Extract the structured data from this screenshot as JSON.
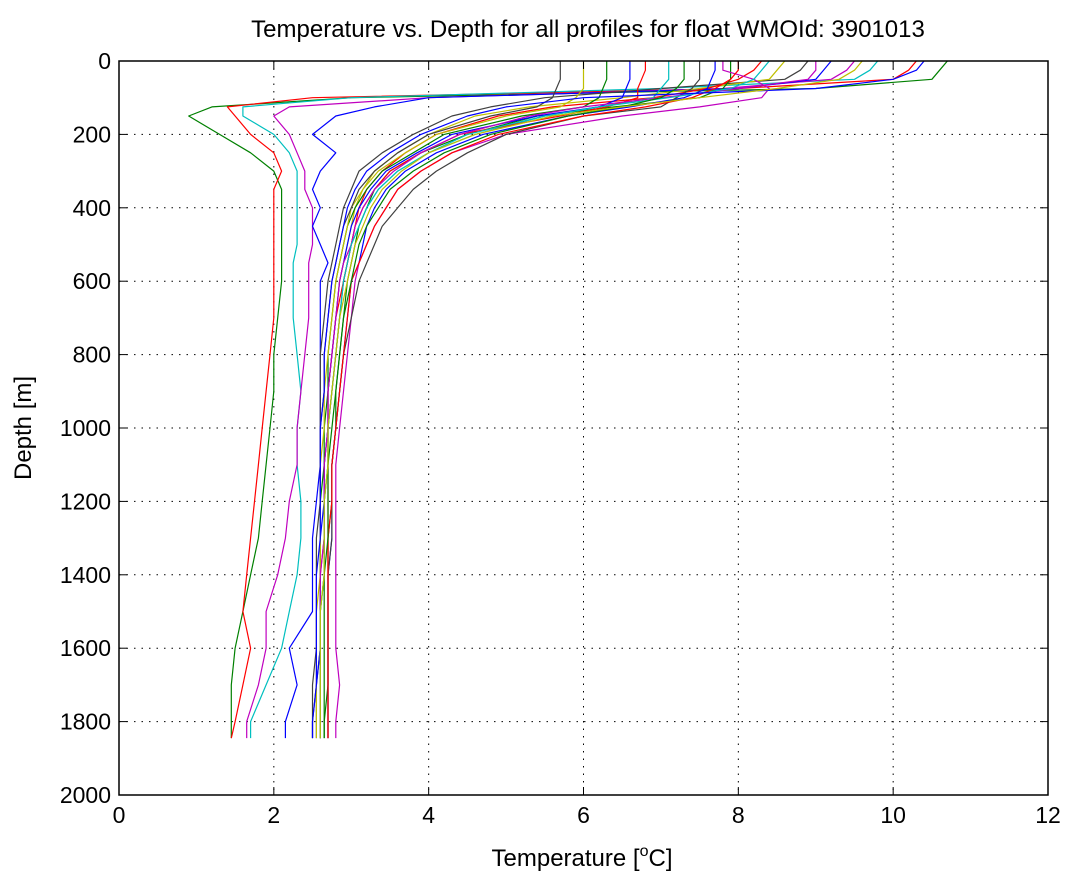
{
  "chart_data": {
    "type": "line",
    "title": "Temperature vs. Depth for all profiles for float WMOId: 3901013",
    "xlabel_prefix": "Temperature [",
    "xlabel_sup": "o",
    "xlabel_suffix": "C]",
    "ylabel": "Depth [m]",
    "xlim": [
      0,
      12
    ],
    "ylim": [
      0,
      2000
    ],
    "y_reversed": true,
    "x_ticks": [
      0,
      2,
      4,
      6,
      8,
      10,
      12
    ],
    "y_ticks": [
      0,
      200,
      400,
      600,
      800,
      1000,
      1200,
      1400,
      1600,
      1800,
      2000
    ],
    "grid": true,
    "grid_style": "dotted",
    "depths": [
      0,
      25,
      50,
      75,
      100,
      125,
      150,
      200,
      250,
      300,
      350,
      400,
      450,
      500,
      550,
      600,
      700,
      800,
      900,
      1000,
      1100,
      1200,
      1300,
      1400,
      1500,
      1600,
      1700,
      1800,
      1845
    ],
    "series": [
      {
        "color": "#008000",
        "values": [
          10.7,
          10.6,
          10.5,
          9.0,
          3.0,
          1.2,
          0.9,
          1.3,
          1.7,
          2.0,
          2.1,
          2.1,
          2.1,
          2.1,
          2.1,
          2.1,
          2.05,
          2.0,
          2.0,
          1.95,
          1.9,
          1.85,
          1.8,
          1.7,
          1.6,
          1.5,
          1.45,
          1.45,
          1.45
        ]
      },
      {
        "color": "#ff0000",
        "values": [
          10.3,
          10.2,
          10.0,
          8.0,
          2.5,
          1.4,
          1.5,
          1.7,
          2.0,
          2.1,
          2.0,
          2.0,
          2.0,
          2.0,
          2.0,
          2.0,
          2.0,
          1.95,
          1.9,
          1.85,
          1.8,
          1.75,
          1.7,
          1.65,
          1.6,
          1.7,
          1.6,
          1.5,
          1.45
        ]
      },
      {
        "color": "#00bfbf",
        "values": [
          9.8,
          9.7,
          9.5,
          7.0,
          3.0,
          1.6,
          1.6,
          2.0,
          2.2,
          2.3,
          2.3,
          2.3,
          2.3,
          2.3,
          2.25,
          2.25,
          2.25,
          2.3,
          2.35,
          2.3,
          2.3,
          2.35,
          2.35,
          2.3,
          2.2,
          2.1,
          1.9,
          1.7,
          1.7
        ]
      },
      {
        "color": "#bf00bf",
        "values": [
          9.5,
          9.4,
          9.2,
          7.8,
          4.0,
          2.2,
          2.0,
          2.2,
          2.3,
          2.4,
          2.4,
          2.5,
          2.5,
          2.5,
          2.45,
          2.45,
          2.45,
          2.4,
          2.35,
          2.3,
          2.3,
          2.2,
          2.15,
          2.05,
          1.9,
          1.9,
          1.8,
          1.65,
          1.65
        ]
      },
      {
        "color": "#0000ff",
        "values": [
          9.2,
          9.1,
          9.0,
          8.0,
          4.0,
          3.3,
          2.8,
          2.5,
          2.8,
          2.6,
          2.5,
          2.6,
          2.5,
          2.6,
          2.7,
          2.6,
          2.6,
          2.6,
          2.6,
          2.6,
          2.6,
          2.55,
          2.5,
          2.5,
          2.5,
          2.2,
          2.3,
          2.15,
          2.15
        ]
      },
      {
        "color": "#404040",
        "values": [
          8.9,
          8.8,
          8.6,
          7.0,
          5.5,
          4.8,
          4.3,
          3.8,
          3.4,
          3.1,
          3.0,
          2.9,
          2.85,
          2.8,
          2.75,
          2.7,
          2.65,
          2.6,
          2.6,
          2.6,
          2.6,
          2.6,
          2.6,
          2.6,
          2.6,
          2.6,
          2.55,
          2.5,
          2.5
        ]
      },
      {
        "color": "#bfbf00",
        "values": [
          8.6,
          8.5,
          8.4,
          7.5,
          6.5,
          5.3,
          4.6,
          4.0,
          3.6,
          3.3,
          3.15,
          3.05,
          3.0,
          2.95,
          2.9,
          2.85,
          2.8,
          2.75,
          2.7,
          2.7,
          2.7,
          2.65,
          2.65,
          2.65,
          2.6,
          2.6,
          2.6,
          2.6,
          2.6
        ]
      },
      {
        "color": "#ff0000",
        "values": [
          8.3,
          8.2,
          8.0,
          7.6,
          6.9,
          5.6,
          4.9,
          4.1,
          3.7,
          3.4,
          3.2,
          3.1,
          3.05,
          3.0,
          2.95,
          2.9,
          2.85,
          2.8,
          2.75,
          2.7,
          2.7,
          2.7,
          2.7,
          2.7,
          2.7,
          2.7,
          2.7,
          2.7,
          2.7
        ]
      },
      {
        "color": "#008000",
        "values": [
          7.9,
          7.9,
          7.9,
          7.8,
          7.5,
          6.4,
          5.4,
          4.5,
          3.9,
          3.5,
          3.3,
          3.2,
          3.1,
          3.05,
          3.0,
          2.95,
          2.9,
          2.85,
          2.8,
          2.8,
          2.75,
          2.75,
          2.7,
          2.7,
          2.7,
          2.7,
          2.7,
          2.65,
          2.65
        ]
      },
      {
        "color": "#0000ff",
        "values": [
          7.7,
          7.7,
          7.65,
          7.6,
          7.3,
          6.6,
          5.8,
          4.7,
          4.1,
          3.7,
          3.45,
          3.3,
          3.2,
          3.15,
          3.1,
          3.0,
          2.95,
          2.9,
          2.85,
          2.8,
          2.75,
          2.75,
          2.75,
          2.7,
          2.7,
          2.7,
          2.7,
          2.7,
          2.7
        ]
      },
      {
        "color": "#bf00bf",
        "values": [
          7.8,
          7.8,
          8.2,
          8.4,
          8.3,
          7.5,
          6.5,
          5.0,
          4.3,
          3.9,
          3.6,
          3.45,
          3.3,
          3.2,
          3.1,
          3.05,
          3.0,
          2.95,
          2.9,
          2.85,
          2.8,
          2.8,
          2.8,
          2.8,
          2.8,
          2.8,
          2.85,
          2.8,
          2.8
        ]
      },
      {
        "color": "#404040",
        "values": [
          7.5,
          7.5,
          7.5,
          7.4,
          7.2,
          7.0,
          6.0,
          5.0,
          4.5,
          4.1,
          3.8,
          3.6,
          3.4,
          3.3,
          3.2,
          3.1,
          3.0,
          2.9,
          2.85,
          2.8,
          2.75,
          2.75,
          2.75,
          2.7,
          2.7,
          2.7,
          2.7,
          2.7,
          2.7
        ]
      },
      {
        "color": "#00bfbf",
        "values": [
          7.1,
          7.1,
          7.1,
          7.0,
          6.9,
          6.2,
          5.5,
          4.6,
          4.0,
          3.6,
          3.35,
          3.2,
          3.1,
          3.0,
          2.95,
          2.9,
          2.85,
          2.8,
          2.75,
          2.7,
          2.7,
          2.65,
          2.65,
          2.65,
          2.6,
          2.6,
          2.6,
          2.6,
          2.6
        ]
      },
      {
        "color": "#ff0000",
        "values": [
          6.8,
          6.8,
          6.75,
          6.7,
          6.7,
          6.3,
          5.7,
          4.4,
          3.9,
          3.5,
          3.3,
          3.15,
          3.05,
          3.0,
          2.95,
          2.9,
          2.8,
          2.75,
          2.7,
          2.7,
          2.65,
          2.65,
          2.65,
          2.6,
          2.6,
          2.6,
          2.6,
          2.6,
          2.6
        ]
      },
      {
        "color": "#0000ff",
        "values": [
          6.6,
          6.6,
          6.6,
          6.55,
          6.5,
          6.2,
          5.4,
          4.3,
          3.85,
          3.45,
          3.25,
          3.1,
          3.0,
          2.95,
          2.9,
          2.85,
          2.8,
          2.75,
          2.7,
          2.7,
          2.65,
          2.65,
          2.6,
          2.6,
          2.6,
          2.6,
          2.55,
          2.55,
          2.55
        ]
      },
      {
        "color": "#008000",
        "values": [
          6.3,
          6.3,
          6.3,
          6.25,
          6.2,
          6.0,
          5.2,
          4.2,
          3.8,
          3.4,
          3.2,
          3.05,
          2.95,
          2.9,
          2.85,
          2.8,
          2.75,
          2.7,
          2.7,
          2.65,
          2.65,
          2.6,
          2.6,
          2.6,
          2.6,
          2.6,
          2.6,
          2.6,
          2.6
        ]
      },
      {
        "color": "#bfbf00",
        "values": [
          6.0,
          6.0,
          6.0,
          6.0,
          5.9,
          5.7,
          5.0,
          4.1,
          3.7,
          3.35,
          3.15,
          3.0,
          2.95,
          2.9,
          2.85,
          2.8,
          2.75,
          2.7,
          2.65,
          2.65,
          2.6,
          2.6,
          2.6,
          2.6,
          2.55,
          2.55,
          2.55,
          2.55,
          2.55
        ]
      },
      {
        "color": "#404040",
        "values": [
          5.7,
          5.7,
          5.7,
          5.65,
          5.6,
          5.4,
          4.8,
          4.0,
          3.6,
          3.3,
          3.1,
          3.0,
          2.9,
          2.85,
          2.8,
          2.75,
          2.7,
          2.65,
          2.65,
          2.6,
          2.6,
          2.6,
          2.55,
          2.55,
          2.55,
          2.55,
          2.5,
          2.5,
          2.5
        ]
      },
      {
        "color": "#bf00bf",
        "values": [
          9.0,
          9.0,
          8.9,
          8.0,
          7.0,
          6.0,
          5.3,
          4.4,
          3.9,
          3.55,
          3.3,
          3.15,
          3.05,
          3.0,
          2.9,
          2.85,
          2.8,
          2.75,
          2.7,
          2.7,
          2.65,
          2.65,
          2.65,
          2.6,
          2.6,
          2.6,
          2.6,
          2.6,
          2.6
        ]
      },
      {
        "color": "#00bfbf",
        "values": [
          8.4,
          8.3,
          8.2,
          7.9,
          7.1,
          6.2,
          5.5,
          4.5,
          4.0,
          3.6,
          3.35,
          3.2,
          3.1,
          3.0,
          2.95,
          2.9,
          2.85,
          2.8,
          2.75,
          2.7,
          2.7,
          2.65,
          2.65,
          2.65,
          2.6,
          2.6,
          2.6,
          2.6,
          2.6
        ]
      },
      {
        "color": "#ff0000",
        "values": [
          8.0,
          8.0,
          7.9,
          7.7,
          7.4,
          6.8,
          6.0,
          4.9,
          4.3,
          3.9,
          3.6,
          3.45,
          3.3,
          3.2,
          3.1,
          3.0,
          2.95,
          2.9,
          2.85,
          2.8,
          2.75,
          2.75,
          2.7,
          2.7,
          2.7,
          2.7,
          2.7,
          2.7,
          2.7
        ]
      },
      {
        "color": "#008000",
        "values": [
          7.3,
          7.3,
          7.3,
          7.2,
          7.0,
          6.5,
          5.8,
          4.8,
          4.2,
          3.8,
          3.5,
          3.35,
          3.2,
          3.1,
          3.05,
          3.0,
          2.9,
          2.85,
          2.8,
          2.75,
          2.7,
          2.7,
          2.7,
          2.65,
          2.65,
          2.65,
          2.65,
          2.65,
          2.65
        ]
      },
      {
        "color": "#0000ff",
        "values": [
          10.4,
          10.3,
          10.0,
          9.0,
          6.0,
          5.0,
          4.5,
          3.9,
          3.5,
          3.2,
          3.05,
          2.95,
          2.9,
          2.85,
          2.8,
          2.75,
          2.7,
          2.65,
          2.65,
          2.6,
          2.6,
          2.6,
          2.6,
          2.55,
          2.55,
          2.55,
          2.55,
          2.5,
          2.5
        ]
      },
      {
        "color": "#bfbf00",
        "values": [
          9.6,
          9.5,
          9.3,
          8.5,
          7.5,
          6.5,
          5.6,
          4.6,
          4.0,
          3.65,
          3.4,
          3.25,
          3.15,
          3.05,
          3.0,
          2.95,
          2.85,
          2.8,
          2.75,
          2.7,
          2.7,
          2.65,
          2.65,
          2.65,
          2.6,
          2.6,
          2.6,
          2.6,
          2.6
        ]
      }
    ]
  }
}
